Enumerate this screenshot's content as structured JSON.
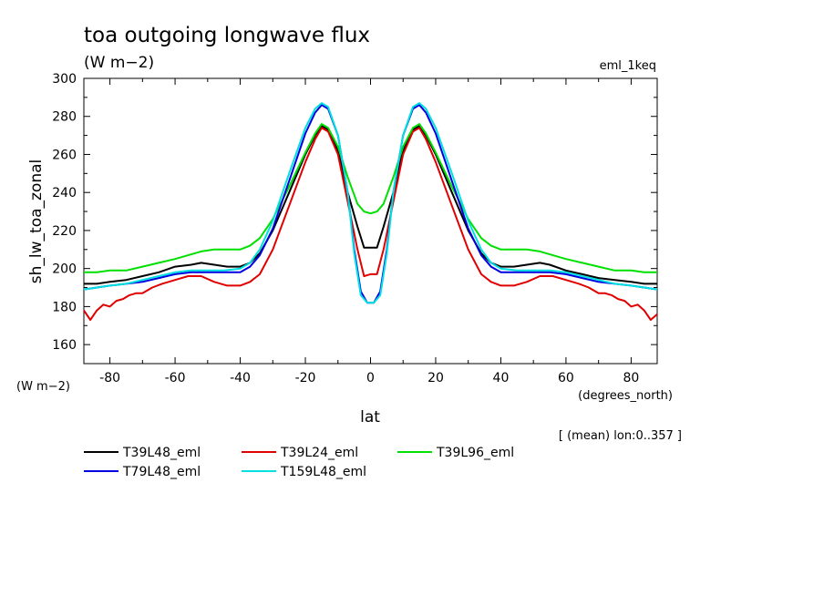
{
  "chart_data": {
    "type": "line",
    "title": "toa outgoing longwave flux",
    "subtitle": "(W m−2)",
    "experiment_label": "eml_1keq",
    "ylabel": "sh_lw_toa_zonal",
    "y_units": "(W m−2)",
    "xlabel": "lat",
    "x_units": "(degrees_north)",
    "footnote": "[ (mean) lon:0..357 ]",
    "xlim": [
      -88,
      88
    ],
    "ylim": [
      150,
      300
    ],
    "x_ticks": [
      -80,
      -60,
      -40,
      -20,
      0,
      20,
      40,
      60,
      80
    ],
    "y_ticks": [
      160,
      180,
      200,
      220,
      240,
      260,
      280,
      300
    ],
    "legend_position": "bottom",
    "series": [
      {
        "name": "T39L48_eml",
        "color": "#000000",
        "x": [
          -88,
          -84,
          -80,
          -75,
          -70,
          -65,
          -60,
          -55,
          -52,
          -48,
          -44,
          -40,
          -37,
          -34,
          -30,
          -25,
          -20,
          -17,
          -15,
          -13,
          -10,
          -7,
          -4,
          -2,
          0,
          2,
          4,
          7,
          10,
          13,
          15,
          17,
          20,
          25,
          30,
          34,
          37,
          40,
          44,
          48,
          52,
          55,
          60,
          65,
          70,
          75,
          80,
          84,
          88
        ],
        "y": [
          192,
          192,
          193,
          194,
          196,
          198,
          201,
          202,
          203,
          202,
          201,
          201,
          203,
          208,
          220,
          240,
          260,
          270,
          275,
          273,
          262,
          240,
          222,
          211,
          211,
          211,
          222,
          240,
          262,
          273,
          275,
          270,
          260,
          240,
          220,
          208,
          203,
          201,
          201,
          202,
          203,
          202,
          199,
          197,
          195,
          194,
          193,
          192,
          192
        ]
      },
      {
        "name": "T39L24_eml",
        "color": "#e00000",
        "x": [
          -88,
          -86,
          -84,
          -82,
          -80,
          -78,
          -76,
          -74,
          -72,
          -70,
          -67,
          -64,
          -60,
          -56,
          -52,
          -48,
          -44,
          -40,
          -37,
          -34,
          -30,
          -25,
          -20,
          -17,
          -15,
          -13,
          -10,
          -7,
          -4,
          -2,
          0,
          2,
          4,
          7,
          10,
          13,
          15,
          17,
          20,
          25,
          30,
          34,
          37,
          40,
          44,
          48,
          52,
          56,
          60,
          64,
          67,
          70,
          72,
          74,
          76,
          78,
          80,
          82,
          84,
          86,
          88
        ],
        "y": [
          178,
          173,
          178,
          181,
          180,
          183,
          184,
          186,
          187,
          187,
          190,
          192,
          194,
          196,
          196,
          193,
          191,
          191,
          193,
          197,
          210,
          233,
          256,
          268,
          274,
          272,
          260,
          235,
          210,
          196,
          197,
          197,
          210,
          235,
          260,
          272,
          274,
          268,
          256,
          233,
          210,
          197,
          193,
          191,
          191,
          193,
          196,
          196,
          194,
          192,
          190,
          187,
          187,
          186,
          184,
          183,
          180,
          181,
          178,
          173,
          176
        ]
      },
      {
        "name": "T39L96_eml",
        "color": "#00e000",
        "x": [
          -88,
          -84,
          -80,
          -75,
          -70,
          -65,
          -60,
          -56,
          -52,
          -48,
          -44,
          -40,
          -37,
          -34,
          -30,
          -25,
          -20,
          -17,
          -15,
          -13,
          -10,
          -7,
          -4,
          -2,
          0,
          2,
          4,
          7,
          10,
          13,
          15,
          17,
          20,
          25,
          30,
          34,
          37,
          40,
          44,
          48,
          52,
          56,
          60,
          65,
          70,
          75,
          80,
          84,
          88
        ],
        "y": [
          198,
          198,
          199,
          199,
          201,
          203,
          205,
          207,
          209,
          210,
          210,
          210,
          212,
          216,
          226,
          243,
          261,
          271,
          276,
          274,
          264,
          248,
          234,
          230,
          229,
          230,
          234,
          248,
          264,
          274,
          276,
          271,
          261,
          243,
          226,
          216,
          212,
          210,
          210,
          210,
          209,
          207,
          205,
          203,
          201,
          199,
          199,
          198,
          198
        ]
      },
      {
        "name": "T79L48_eml",
        "color": "#0000e0",
        "x": [
          -88,
          -84,
          -80,
          -75,
          -70,
          -65,
          -60,
          -55,
          -50,
          -45,
          -40,
          -37,
          -34,
          -30,
          -25,
          -20,
          -17,
          -15,
          -13,
          -10,
          -7,
          -5,
          -3,
          -1,
          1,
          3,
          5,
          7,
          10,
          13,
          15,
          17,
          20,
          25,
          30,
          34,
          37,
          40,
          45,
          50,
          55,
          60,
          65,
          70,
          75,
          80,
          84,
          88
        ],
        "y": [
          189,
          190,
          191,
          192,
          193,
          195,
          197,
          198,
          198,
          198,
          198,
          201,
          207,
          221,
          246,
          271,
          282,
          286,
          284,
          270,
          240,
          210,
          188,
          182,
          182,
          188,
          210,
          240,
          270,
          284,
          286,
          282,
          271,
          246,
          221,
          207,
          201,
          198,
          198,
          198,
          198,
          197,
          195,
          193,
          192,
          191,
          190,
          189
        ]
      },
      {
        "name": "T159L48_eml",
        "color": "#00e0e0",
        "x": [
          -88,
          -84,
          -80,
          -75,
          -70,
          -65,
          -60,
          -55,
          -50,
          -45,
          -40,
          -37,
          -34,
          -30,
          -25,
          -20,
          -17,
          -15,
          -13,
          -10,
          -7,
          -5,
          -3,
          -1,
          1,
          3,
          5,
          7,
          10,
          13,
          15,
          17,
          20,
          25,
          30,
          34,
          37,
          40,
          45,
          50,
          55,
          60,
          65,
          70,
          75,
          80,
          84,
          88
        ],
        "y": [
          189,
          190,
          191,
          192,
          194,
          196,
          198,
          199,
          199,
          199,
          200,
          203,
          210,
          225,
          250,
          274,
          284,
          287,
          285,
          270,
          240,
          208,
          186,
          182,
          182,
          186,
          208,
          240,
          270,
          285,
          287,
          284,
          274,
          250,
          225,
          210,
          203,
          200,
          199,
          199,
          199,
          198,
          196,
          194,
          192,
          191,
          190,
          189
        ]
      }
    ]
  }
}
